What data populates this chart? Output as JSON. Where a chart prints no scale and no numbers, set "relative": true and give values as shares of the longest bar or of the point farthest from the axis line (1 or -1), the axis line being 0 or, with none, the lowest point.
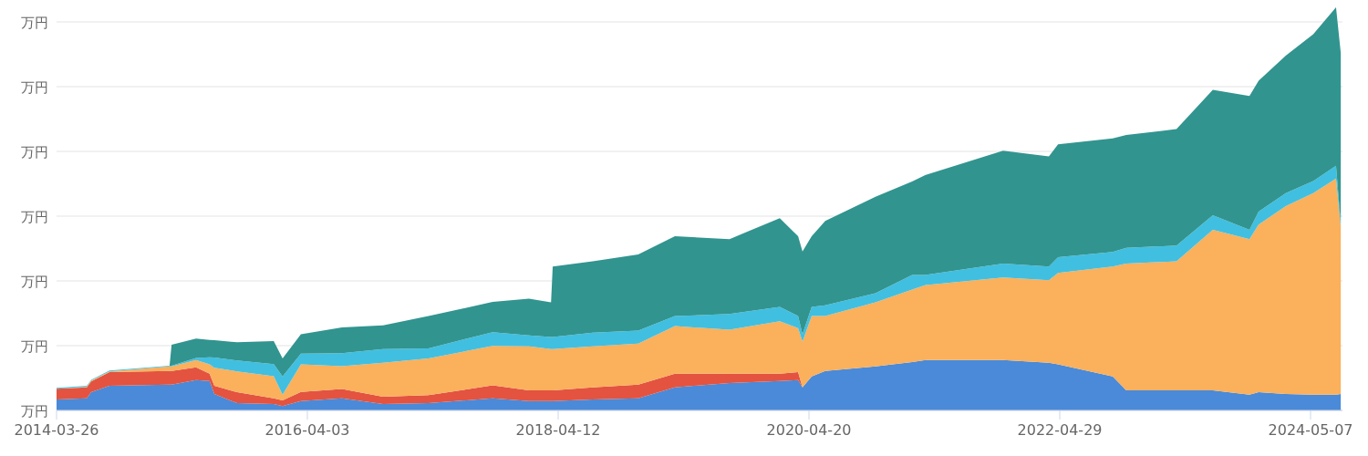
{
  "chart_data": {
    "type": "area",
    "stacked": true,
    "relative": true,
    "grid": "y",
    "x": [
      "2014-03-26",
      "2014-06-23",
      "2014-07-06",
      "2014-08-29",
      "2015-02-22",
      "2015-02-28",
      "2015-05-11",
      "2015-06-20",
      "2015-07-04",
      "2015-09-09",
      "2015-12-26",
      "2016-01-21",
      "2016-03-15",
      "2016-07-14",
      "2016-11-12",
      "2017-03-26",
      "2017-10-01",
      "2018-01-16",
      "2018-03-22",
      "2018-03-27",
      "2018-07-23",
      "2018-12-04",
      "2019-03-22",
      "2019-08-30",
      "2020-01-25",
      "2020-03-19",
      "2020-04-01",
      "2020-04-28",
      "2020-06-07",
      "2020-11-02",
      "2021-02-18",
      "2021-03-30",
      "2021-11-13",
      "2022-03-28",
      "2022-04-24",
      "2022-10-02",
      "2022-11-11",
      "2023-04-08",
      "2023-07-24",
      "2023-11-09",
      "2023-12-06",
      "2024-02-24",
      "2024-05-15",
      "2024-07-21",
      "2024-08-04"
    ],
    "xlim": [
      "2014-03-26",
      "2024-08-09"
    ],
    "xticks": [
      {
        "value": "2014-03-26",
        "label": "2014-03-26"
      },
      {
        "value": "2016-04-03",
        "label": "2016-04-03"
      },
      {
        "value": "2018-04-12",
        "label": "2018-04-12"
      },
      {
        "value": "2020-04-20",
        "label": "2020-04-20"
      },
      {
        "value": "2022-04-29",
        "label": "2022-04-29"
      },
      {
        "value": "2024-05-07",
        "label": "2024-05-07"
      }
    ],
    "annotations": [
      "万円",
      "万円",
      "万円",
      "万円",
      "万円",
      "万円",
      "万円"
    ],
    "series": [
      {
        "color": "#4a8ad8",
        "values": [
          0.027,
          0.03,
          0.045,
          0.061,
          0.064,
          0.064,
          0.075,
          0.073,
          0.041,
          0.018,
          0.016,
          0.011,
          0.023,
          0.03,
          0.016,
          0.018,
          0.03,
          0.023,
          0.023,
          0.023,
          0.027,
          0.03,
          0.057,
          0.068,
          0.073,
          0.075,
          0.057,
          0.084,
          0.098,
          0.109,
          0.12,
          0.125,
          0.125,
          0.118,
          0.114,
          0.084,
          0.05,
          0.05,
          0.05,
          0.039,
          0.045,
          0.041,
          0.039,
          0.039,
          0.041
        ]
      },
      {
        "color": "#e35340",
        "values": [
          0.027,
          0.027,
          0.027,
          0.034,
          0.034,
          0.034,
          0.032,
          0.018,
          0.02,
          0.027,
          0.014,
          0.014,
          0.023,
          0.023,
          0.018,
          0.02,
          0.032,
          0.027,
          0.027,
          0.027,
          0.03,
          0.034,
          0.034,
          0.023,
          0.018,
          0.02,
          0,
          0,
          0,
          0,
          0,
          0,
          0,
          0,
          0,
          0,
          0,
          0,
          0,
          0,
          0,
          0,
          0,
          0,
          0
        ]
      },
      {
        "color": "#fbb05c",
        "values": [
          0,
          0.002,
          0.002,
          0.002,
          0.011,
          0.011,
          0.018,
          0.023,
          0.045,
          0.052,
          0.055,
          0.014,
          0.068,
          0.057,
          0.084,
          0.091,
          0.098,
          0.109,
          0.102,
          0.102,
          0.102,
          0.102,
          0.118,
          0.109,
          0.13,
          0.109,
          0.114,
          0.15,
          0.136,
          0.159,
          0.18,
          0.186,
          0.205,
          0.205,
          0.227,
          0.273,
          0.314,
          0.32,
          0.398,
          0.386,
          0.416,
          0.466,
          0.5,
          0.536,
          0.414
        ]
      },
      {
        "color": "#41bfe0",
        "values": [
          0.002,
          0.002,
          0.002,
          0.002,
          0.002,
          0.002,
          0.005,
          0.018,
          0.025,
          0.027,
          0.03,
          0.045,
          0.027,
          0.032,
          0.034,
          0.025,
          0.034,
          0.027,
          0.03,
          0.03,
          0.034,
          0.032,
          0.025,
          0.039,
          0.036,
          0.03,
          0.018,
          0.023,
          0.027,
          0.023,
          0.036,
          0.025,
          0.034,
          0.034,
          0.039,
          0.036,
          0.039,
          0.039,
          0.036,
          0.023,
          0.032,
          0.032,
          0.03,
          0.032,
          0.007
        ]
      },
      {
        "color": "#31948f",
        "values": [
          0,
          0,
          0,
          0,
          0,
          0.052,
          0.048,
          0.043,
          0.043,
          0.045,
          0.057,
          0.045,
          0.048,
          0.064,
          0.059,
          0.08,
          0.075,
          0.091,
          0.086,
          0.175,
          0.177,
          0.189,
          0.198,
          0.186,
          0.22,
          0.198,
          0.205,
          0.175,
          0.209,
          0.239,
          0.232,
          0.248,
          0.28,
          0.273,
          0.28,
          0.282,
          0.28,
          0.289,
          0.311,
          0.332,
          0.325,
          0.341,
          0.364,
          0.393,
          0.425
        ]
      }
    ]
  }
}
